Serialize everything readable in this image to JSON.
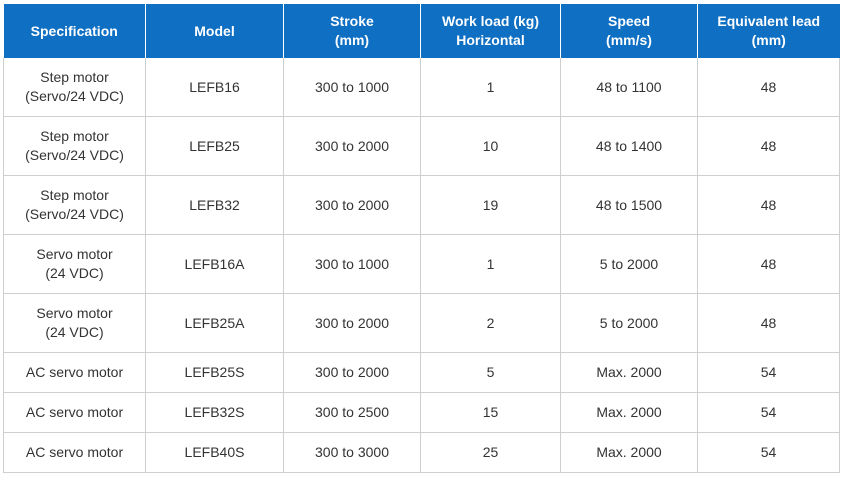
{
  "header": {
    "specification": "Specification",
    "model": "Model",
    "stroke_l1": "Stroke",
    "stroke_l2": "(mm)",
    "workload_l1": "Work load (kg)",
    "workload_l2": "Horizontal",
    "speed_l1": "Speed",
    "speed_l2": "(mm/s)",
    "lead_l1": "Equivalent lead",
    "lead_l2": "(mm)"
  },
  "rows": [
    {
      "spec_l1": "Step motor",
      "spec_l2": "(Servo/24 VDC)",
      "model": "LEFB16",
      "stroke": "300 to 1000",
      "workload": "1",
      "speed": "48 to 1100",
      "lead": "48"
    },
    {
      "spec_l1": "Step motor",
      "spec_l2": "(Servo/24 VDC)",
      "model": "LEFB25",
      "stroke": "300 to 2000",
      "workload": "10",
      "speed": "48 to 1400",
      "lead": "48"
    },
    {
      "spec_l1": "Step motor",
      "spec_l2": "(Servo/24 VDC)",
      "model": "LEFB32",
      "stroke": "300 to 2000",
      "workload": "19",
      "speed": "48 to 1500",
      "lead": "48"
    },
    {
      "spec_l1": "Servo motor",
      "spec_l2": "(24 VDC)",
      "model": "LEFB16A",
      "stroke": "300 to 1000",
      "workload": "1",
      "speed": "5 to 2000",
      "lead": "48"
    },
    {
      "spec_l1": "Servo motor",
      "spec_l2": "(24 VDC)",
      "model": "LEFB25A",
      "stroke": "300 to 2000",
      "workload": "2",
      "speed": "5 to 2000",
      "lead": "48"
    },
    {
      "spec_l1": "AC servo motor",
      "spec_l2": "",
      "model": "LEFB25S",
      "stroke": "300 to 2000",
      "workload": "5",
      "speed": "Max. 2000",
      "lead": "54"
    },
    {
      "spec_l1": "AC servo motor",
      "spec_l2": "",
      "model": "LEFB32S",
      "stroke": "300 to 2500",
      "workload": "15",
      "speed": "Max. 2000",
      "lead": "54"
    },
    {
      "spec_l1": "AC servo motor",
      "spec_l2": "",
      "model": "LEFB40S",
      "stroke": "300 to 3000",
      "workload": "25",
      "speed": "Max. 2000",
      "lead": "54"
    }
  ]
}
